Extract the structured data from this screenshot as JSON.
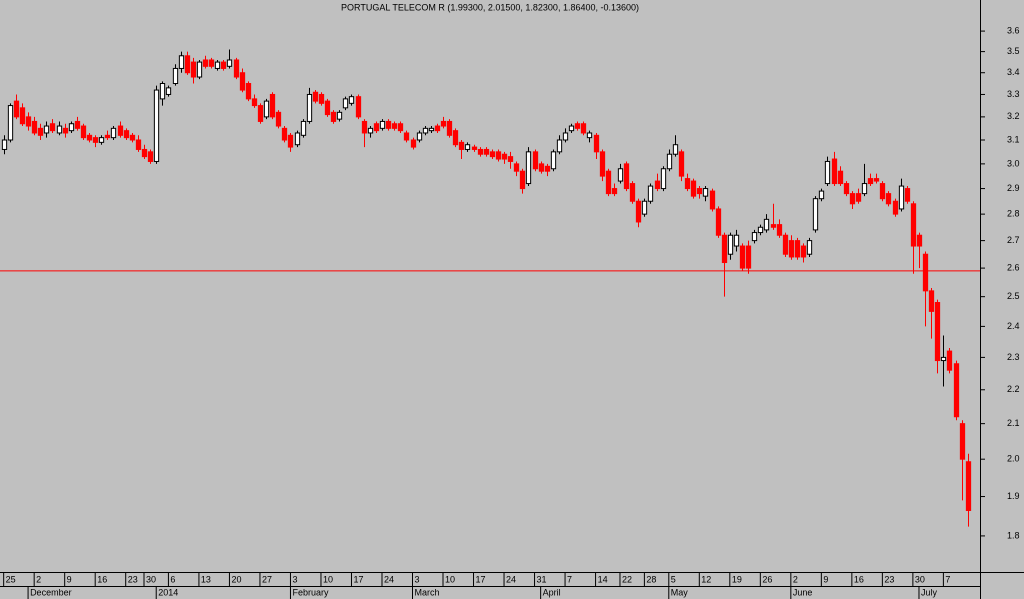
{
  "chart_data": {
    "type": "candlestick",
    "title": "PORTUGAL TELECOM R (1.99300, 2.01500, 1.82300, 1.86400, -0.13600)",
    "log_scale": true,
    "up_color": "#ffffff",
    "down_color": "#ff0000",
    "outline_color": "#000000",
    "reference_line": {
      "value": 2.59,
      "color": "#ff0000"
    },
    "xlim": [
      -0.6,
      160
    ],
    "ylim": [
      1.713,
      3.757
    ],
    "yticks": [
      1.8,
      1.9,
      {
        "value": 2,
        "label": "2.0"
      },
      2.1,
      2.2,
      2.3,
      2.4,
      2.5,
      2.6,
      2.7,
      2.8,
      2.9,
      {
        "value": 3,
        "label": "3.0"
      },
      3.1,
      3.2,
      3.3,
      3.4,
      3.5,
      3.6
    ],
    "xticks": [
      {
        "value": 0,
        "label": "25"
      },
      {
        "value": 5,
        "label": "2"
      },
      {
        "value": 10,
        "label": "9"
      },
      {
        "value": 15,
        "label": "16"
      },
      {
        "value": 20,
        "label": "23"
      },
      {
        "value": 23,
        "label": "30"
      },
      {
        "value": 27,
        "label": "6"
      },
      {
        "value": 32,
        "label": "13"
      },
      {
        "value": 37,
        "label": "20"
      },
      {
        "value": 42,
        "label": "27"
      },
      {
        "value": 47,
        "label": "3"
      },
      {
        "value": 52,
        "label": "10"
      },
      {
        "value": 57,
        "label": "17"
      },
      {
        "value": 62,
        "label": "24"
      },
      {
        "value": 67,
        "label": "3"
      },
      {
        "value": 72,
        "label": "10"
      },
      {
        "value": 77,
        "label": "17"
      },
      {
        "value": 82,
        "label": "24"
      },
      {
        "value": 87,
        "label": "31"
      },
      {
        "value": 92,
        "label": "7"
      },
      {
        "value": 97,
        "label": "14"
      },
      {
        "value": 101,
        "label": "22"
      },
      {
        "value": 105,
        "label": "28"
      },
      {
        "value": 109,
        "label": "5"
      },
      {
        "value": 114,
        "label": "12"
      },
      {
        "value": 119,
        "label": "19"
      },
      {
        "value": 124,
        "label": "26"
      },
      {
        "value": 129,
        "label": "2"
      },
      {
        "value": 134,
        "label": "9"
      },
      {
        "value": 139,
        "label": "16"
      },
      {
        "value": 144,
        "label": "23"
      },
      {
        "value": 149,
        "label": "30"
      },
      {
        "value": 154,
        "label": "7"
      }
    ],
    "month_labels": [
      {
        "value": 4,
        "label": "December"
      },
      {
        "value": 25,
        "label": "2014"
      },
      {
        "value": 47,
        "label": "February"
      },
      {
        "value": 67,
        "label": "March"
      },
      {
        "value": 88,
        "label": "April"
      },
      {
        "value": 109,
        "label": "May"
      },
      {
        "value": 129,
        "label": "June"
      },
      {
        "value": 150,
        "label": "July"
      }
    ],
    "ohlc": [
      [
        3.06,
        3.12,
        3.04,
        3.1
      ],
      [
        3.1,
        3.26,
        3.09,
        3.25
      ],
      [
        3.27,
        3.3,
        3.19,
        3.2
      ],
      [
        3.24,
        3.26,
        3.16,
        3.17
      ],
      [
        3.2,
        3.22,
        3.14,
        3.16
      ],
      [
        3.18,
        3.2,
        3.12,
        3.13
      ],
      [
        3.15,
        3.17,
        3.1,
        3.12
      ],
      [
        3.13,
        3.18,
        3.11,
        3.16
      ],
      [
        3.17,
        3.19,
        3.13,
        3.14
      ],
      [
        3.13,
        3.18,
        3.12,
        3.16
      ],
      [
        3.15,
        3.17,
        3.11,
        3.13
      ],
      [
        3.14,
        3.18,
        3.13,
        3.17
      ],
      [
        3.18,
        3.2,
        3.14,
        3.15
      ],
      [
        3.16,
        3.17,
        3.1,
        3.11
      ],
      [
        3.12,
        3.13,
        3.09,
        3.1
      ],
      [
        3.11,
        3.12,
        3.07,
        3.09
      ],
      [
        3.09,
        3.12,
        3.08,
        3.11
      ],
      [
        3.12,
        3.14,
        3.1,
        3.11
      ],
      [
        3.11,
        3.16,
        3.1,
        3.15
      ],
      [
        3.16,
        3.18,
        3.11,
        3.12
      ],
      [
        3.14,
        3.15,
        3.1,
        3.11
      ],
      [
        3.12,
        3.13,
        3.09,
        3.1
      ],
      [
        3.1,
        3.12,
        3.05,
        3.06
      ],
      [
        3.06,
        3.08,
        3.02,
        3.03
      ],
      [
        3.05,
        3.06,
        3.0,
        3.01
      ],
      [
        3.01,
        3.34,
        3.0,
        3.32
      ],
      [
        3.28,
        3.36,
        3.25,
        3.35
      ],
      [
        3.3,
        3.34,
        3.29,
        3.33
      ],
      [
        3.35,
        3.44,
        3.34,
        3.42
      ],
      [
        3.42,
        3.5,
        3.4,
        3.48
      ],
      [
        3.48,
        3.5,
        3.39,
        3.4
      ],
      [
        3.45,
        3.47,
        3.35,
        3.38
      ],
      [
        3.38,
        3.46,
        3.37,
        3.45
      ],
      [
        3.46,
        3.48,
        3.42,
        3.43
      ],
      [
        3.46,
        3.47,
        3.42,
        3.43
      ],
      [
        3.42,
        3.46,
        3.41,
        3.45
      ],
      [
        3.45,
        3.46,
        3.41,
        3.42
      ],
      [
        3.43,
        3.51,
        3.42,
        3.46
      ],
      [
        3.46,
        3.47,
        3.37,
        3.38
      ],
      [
        3.4,
        3.42,
        3.31,
        3.32
      ],
      [
        3.35,
        3.36,
        3.27,
        3.28
      ],
      [
        3.28,
        3.3,
        3.24,
        3.25
      ],
      [
        3.25,
        3.26,
        3.17,
        3.18
      ],
      [
        3.2,
        3.28,
        3.19,
        3.27
      ],
      [
        3.3,
        3.31,
        3.19,
        3.2
      ],
      [
        3.22,
        3.23,
        3.15,
        3.16
      ],
      [
        3.15,
        3.16,
        3.09,
        3.1
      ],
      [
        3.12,
        3.13,
        3.05,
        3.07
      ],
      [
        3.08,
        3.14,
        3.07,
        3.13
      ],
      [
        3.12,
        3.19,
        3.11,
        3.18
      ],
      [
        3.18,
        3.33,
        3.17,
        3.3
      ],
      [
        3.31,
        3.32,
        3.26,
        3.27
      ],
      [
        3.3,
        3.31,
        3.25,
        3.26
      ],
      [
        3.27,
        3.28,
        3.2,
        3.21
      ],
      [
        3.22,
        3.23,
        3.17,
        3.18
      ],
      [
        3.19,
        3.23,
        3.18,
        3.22
      ],
      [
        3.24,
        3.29,
        3.23,
        3.28
      ],
      [
        3.26,
        3.3,
        3.25,
        3.29
      ],
      [
        3.29,
        3.3,
        3.19,
        3.2
      ],
      [
        3.18,
        3.19,
        3.07,
        3.13
      ],
      [
        3.13,
        3.16,
        3.11,
        3.15
      ],
      [
        3.17,
        3.18,
        3.13,
        3.14
      ],
      [
        3.15,
        3.19,
        3.14,
        3.18
      ],
      [
        3.18,
        3.19,
        3.14,
        3.15
      ],
      [
        3.17,
        3.18,
        3.14,
        3.15
      ],
      [
        3.17,
        3.18,
        3.13,
        3.14
      ],
      [
        3.13,
        3.14,
        3.09,
        3.1
      ],
      [
        3.1,
        3.11,
        3.06,
        3.07
      ],
      [
        3.1,
        3.14,
        3.09,
        3.13
      ],
      [
        3.13,
        3.16,
        3.12,
        3.15
      ],
      [
        3.14,
        3.16,
        3.13,
        3.15
      ],
      [
        3.16,
        3.17,
        3.13,
        3.14
      ],
      [
        3.18,
        3.2,
        3.15,
        3.16
      ],
      [
        3.18,
        3.19,
        3.11,
        3.12
      ],
      [
        3.14,
        3.15,
        3.07,
        3.08
      ],
      [
        3.09,
        3.1,
        3.02,
        3.06
      ],
      [
        3.06,
        3.09,
        3.05,
        3.08
      ],
      [
        3.07,
        3.08,
        3.05,
        3.06
      ],
      [
        3.06,
        3.07,
        3.03,
        3.04
      ],
      [
        3.06,
        3.07,
        3.03,
        3.04
      ],
      [
        3.05,
        3.06,
        3.02,
        3.03
      ],
      [
        3.05,
        3.06,
        3.01,
        3.02
      ],
      [
        3.04,
        3.05,
        3.0,
        3.02
      ],
      [
        3.03,
        3.05,
        2.98,
        3.01
      ],
      [
        3.0,
        3.01,
        2.95,
        2.97
      ],
      [
        2.97,
        2.98,
        2.88,
        2.9
      ],
      [
        2.92,
        3.07,
        2.91,
        3.05
      ],
      [
        3.05,
        3.06,
        2.97,
        2.98
      ],
      [
        3.0,
        3.01,
        2.96,
        2.97
      ],
      [
        2.99,
        3.0,
        2.95,
        2.97
      ],
      [
        2.98,
        3.06,
        2.97,
        3.05
      ],
      [
        3.05,
        3.12,
        3.04,
        3.1
      ],
      [
        3.1,
        3.15,
        3.09,
        3.13
      ],
      [
        3.14,
        3.17,
        3.13,
        3.16
      ],
      [
        3.17,
        3.18,
        3.14,
        3.15
      ],
      [
        3.17,
        3.18,
        3.12,
        3.13
      ],
      [
        3.11,
        3.14,
        3.09,
        3.13
      ],
      [
        3.12,
        3.13,
        3.02,
        3.05
      ],
      [
        3.05,
        3.06,
        2.93,
        2.95
      ],
      [
        2.97,
        2.98,
        2.87,
        2.88
      ],
      [
        2.9,
        2.92,
        2.87,
        2.88
      ],
      [
        2.93,
        3.0,
        2.92,
        2.98
      ],
      [
        3.0,
        3.01,
        2.89,
        2.9
      ],
      [
        2.92,
        2.93,
        2.84,
        2.85
      ],
      [
        2.85,
        2.86,
        2.75,
        2.77
      ],
      [
        2.8,
        2.86,
        2.79,
        2.85
      ],
      [
        2.85,
        2.92,
        2.84,
        2.91
      ],
      [
        2.93,
        2.96,
        2.89,
        2.9
      ],
      [
        2.9,
        2.99,
        2.89,
        2.98
      ],
      [
        2.98,
        3.06,
        2.97,
        3.04
      ],
      [
        3.04,
        3.12,
        3.03,
        3.08
      ],
      [
        3.05,
        3.06,
        2.93,
        2.95
      ],
      [
        2.94,
        2.96,
        2.89,
        2.9
      ],
      [
        2.93,
        2.94,
        2.86,
        2.87
      ],
      [
        2.9,
        2.91,
        2.86,
        2.88
      ],
      [
        2.87,
        2.91,
        2.85,
        2.9
      ],
      [
        2.89,
        2.9,
        2.81,
        2.82
      ],
      [
        2.82,
        2.83,
        2.71,
        2.72
      ],
      [
        2.72,
        2.73,
        2.5,
        2.62
      ],
      [
        2.65,
        2.73,
        2.63,
        2.72
      ],
      [
        2.68,
        2.74,
        2.66,
        2.72
      ],
      [
        2.68,
        2.69,
        2.59,
        2.6
      ],
      [
        2.68,
        2.7,
        2.58,
        2.6
      ],
      [
        2.7,
        2.74,
        2.69,
        2.73
      ],
      [
        2.73,
        2.76,
        2.72,
        2.75
      ],
      [
        2.74,
        2.8,
        2.73,
        2.78
      ],
      [
        2.76,
        2.84,
        2.74,
        2.75
      ],
      [
        2.76,
        2.78,
        2.71,
        2.72
      ],
      [
        2.72,
        2.73,
        2.64,
        2.65
      ],
      [
        2.7,
        2.72,
        2.63,
        2.64
      ],
      [
        2.7,
        2.71,
        2.63,
        2.64
      ],
      [
        2.68,
        2.69,
        2.62,
        2.64
      ],
      [
        2.65,
        2.71,
        2.64,
        2.7
      ],
      [
        2.74,
        2.87,
        2.73,
        2.86
      ],
      [
        2.86,
        2.9,
        2.85,
        2.89
      ],
      [
        2.92,
        3.03,
        2.91,
        3.01
      ],
      [
        3.02,
        3.05,
        2.91,
        2.92
      ],
      [
        2.97,
        2.99,
        2.91,
        2.92
      ],
      [
        2.92,
        2.93,
        2.87,
        2.88
      ],
      [
        2.88,
        2.89,
        2.82,
        2.84
      ],
      [
        2.88,
        2.9,
        2.84,
        2.85
      ],
      [
        2.88,
        3.0,
        2.87,
        2.92
      ],
      [
        2.94,
        2.96,
        2.91,
        2.92
      ],
      [
        2.94,
        2.96,
        2.92,
        2.93
      ],
      [
        2.92,
        2.93,
        2.85,
        2.86
      ],
      [
        2.88,
        2.89,
        2.83,
        2.84
      ],
      [
        2.85,
        2.86,
        2.79,
        2.8
      ],
      [
        2.82,
        2.94,
        2.81,
        2.91
      ],
      [
        2.9,
        2.91,
        2.84,
        2.85
      ],
      [
        2.84,
        2.85,
        2.58,
        2.68
      ],
      [
        2.72,
        2.73,
        2.6,
        2.68
      ],
      [
        2.65,
        2.66,
        2.4,
        2.52
      ],
      [
        2.52,
        2.53,
        2.36,
        2.45
      ],
      [
        2.48,
        2.49,
        2.25,
        2.29
      ],
      [
        2.29,
        2.37,
        2.21,
        2.3
      ],
      [
        2.32,
        2.33,
        2.25,
        2.26
      ],
      [
        2.28,
        2.29,
        2.11,
        2.12
      ],
      [
        2.1,
        2.11,
        1.89,
        2.0
      ],
      [
        1.993,
        2.015,
        1.823,
        1.864
      ]
    ]
  }
}
